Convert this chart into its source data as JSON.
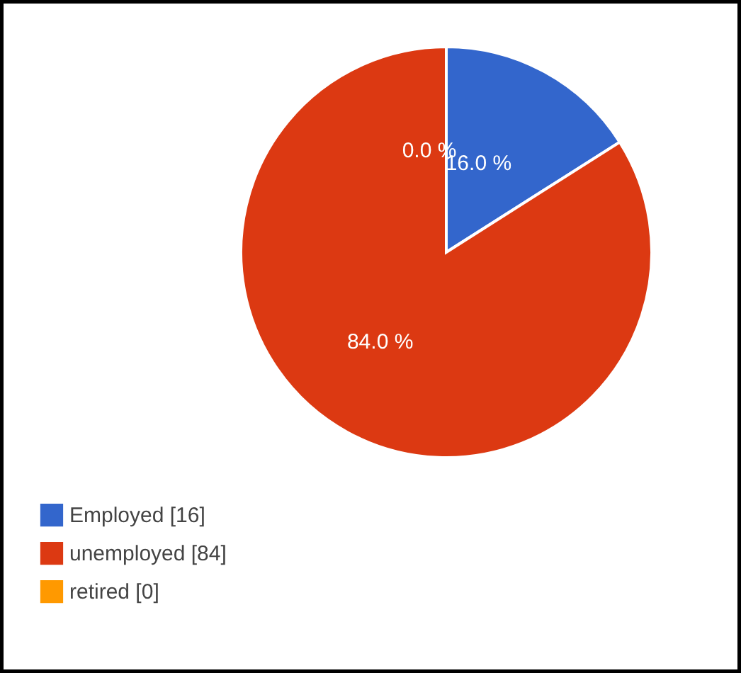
{
  "chart_data": {
    "type": "pie",
    "categories": [
      "Employed  [16]",
      "unemployed  [84]",
      "retired  [0]"
    ],
    "values": [
      16,
      84,
      0
    ],
    "colors": [
      "#3366cc",
      "#dc3912",
      "#ff9900"
    ],
    "value_labels": [
      "16.0 %",
      "84.0 %",
      "0.0 %"
    ],
    "legend": "bottom left"
  }
}
